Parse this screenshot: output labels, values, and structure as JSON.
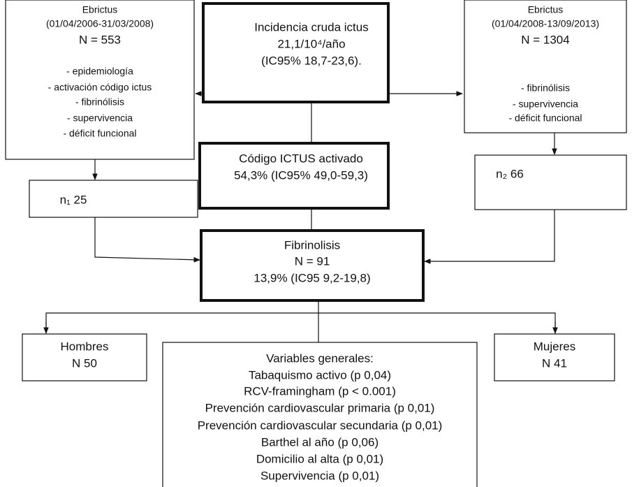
{
  "nodes": [
    {
      "lines": [
        "Ebrictus",
        "(01/04/2006-31/03/2008)",
        "N = 553",
        "- epidemiología",
        "- activación código ictus",
        "- fibrinólisis",
        "- supervivencia",
        "- déficit funcional"
      ]
    },
    {
      "lines": [
        "Incidencia cruda ictus",
        "21,1/10⁴/año",
        "(IC95% 18,7-23,6)."
      ]
    },
    {
      "lines": [
        "Ebrictus",
        "(01/04/2008-13/09/2013)",
        "N = 1304",
        "- fibrinólisis",
        "- supervivencia",
        "- déficit funcional"
      ]
    },
    {
      "lines": [
        "Código ICTUS activado",
        "54,3% (IC95% 49,0-59,3)"
      ]
    },
    {
      "lines": [
        "n₁ 25"
      ]
    },
    {
      "lines": [
        "n₂ 66"
      ]
    },
    {
      "lines": [
        "Fibrinolisis",
        "N = 91",
        "13,9% (IC95 9,2-19,8)"
      ]
    },
    {
      "lines": [
        "Hombres",
        "N 50"
      ]
    },
    {
      "lines": [
        "Mujeres",
        "N 41"
      ]
    },
    {
      "lines": [
        "Variables generales:",
        "Tabaquismo activo (p 0,04)",
        "RCV-framingham (p < 0.001)",
        "Prevención cardiovascular primaria (p 0,01)",
        "Prevención cardiovascular secundaria (p 0,01)",
        "Barthel al año (p 0,06)",
        "Domicilio al alta (p 0,01)",
        "Supervivencia (p 0,01)"
      ]
    }
  ]
}
